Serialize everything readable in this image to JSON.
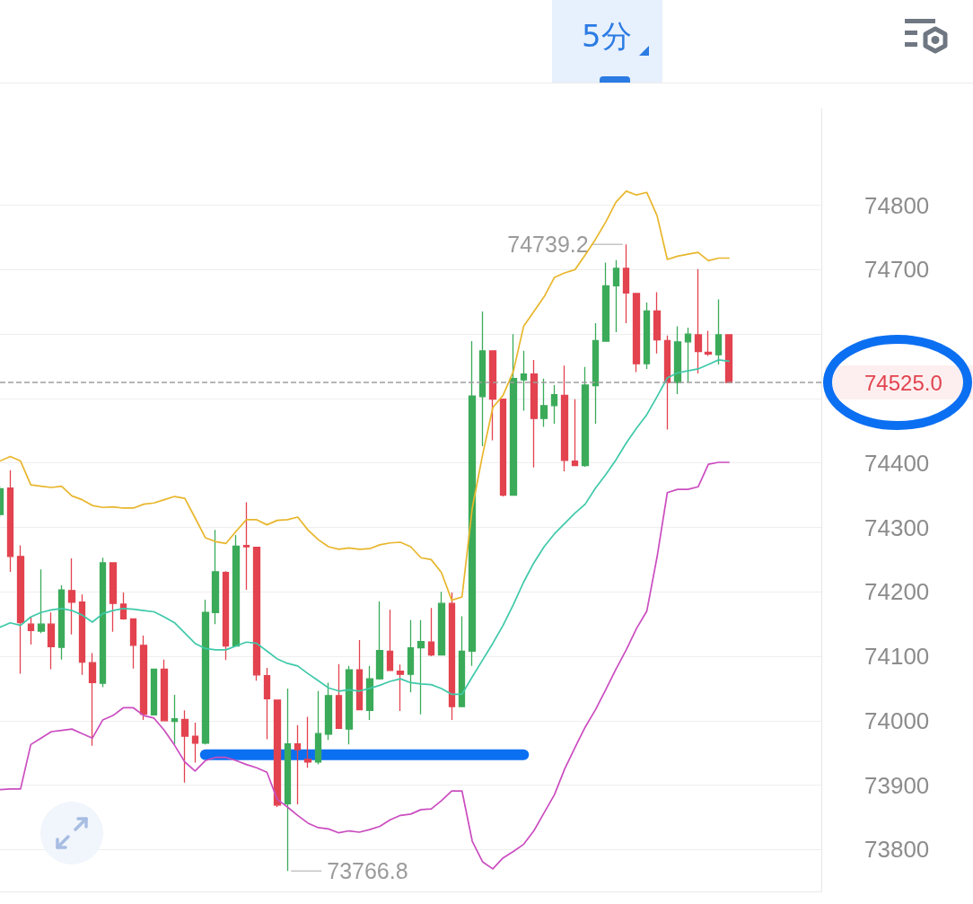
{
  "chart_data": {
    "type": "candlestick",
    "categories": [
      null,
      null,
      null,
      null,
      null,
      null,
      null,
      null,
      null,
      null,
      null,
      null,
      null,
      null,
      null,
      null,
      null,
      null,
      null,
      null,
      null,
      null,
      null,
      null,
      null,
      null,
      null,
      null,
      null,
      null,
      null,
      null,
      null,
      null,
      null,
      null,
      null,
      null,
      null,
      null,
      null,
      null,
      null,
      null,
      null,
      null,
      null,
      null,
      null,
      null,
      null,
      null,
      null,
      null,
      null,
      null,
      null,
      null,
      null,
      null,
      null,
      null,
      null,
      null,
      null,
      null,
      null,
      null,
      null,
      null,
      null,
      null
    ],
    "ohlc": [
      [
        74320,
        74365,
        74315,
        74360
      ],
      [
        74361,
        74389,
        74231,
        74255
      ],
      [
        74255,
        74272,
        74073,
        74152
      ],
      [
        74150,
        74161,
        74118,
        74140
      ],
      [
        74139,
        74235,
        74136,
        74150
      ],
      [
        74150,
        74168,
        74080,
        74115
      ],
      [
        74114,
        74210,
        74095,
        74203
      ],
      [
        74202,
        74252,
        74134,
        74184
      ],
      [
        74184,
        74196,
        74071,
        74091
      ],
      [
        74090,
        74105,
        73961,
        74059
      ],
      [
        74058,
        74253,
        74052,
        74245
      ],
      [
        74245,
        74245,
        74138,
        74182
      ],
      [
        74181,
        74199,
        74157,
        74158
      ],
      [
        74158,
        74158,
        74081,
        74117
      ],
      [
        74117,
        74132,
        74001,
        74010
      ],
      [
        74009,
        74080,
        74009,
        74080
      ],
      [
        74080,
        74095,
        74000,
        74000
      ],
      [
        73999,
        74040,
        73964,
        74003
      ],
      [
        74002,
        74016,
        73904,
        73976
      ],
      [
        73976,
        73997,
        73935,
        73965
      ],
      [
        73965,
        74188,
        73963,
        74168
      ],
      [
        74168,
        74296,
        74150,
        74231
      ],
      [
        74230,
        74232,
        74094,
        74116
      ],
      [
        74116,
        74288,
        74115,
        74271
      ],
      [
        74272,
        74339,
        74203,
        74270
      ],
      [
        74269,
        74269,
        74062,
        74071
      ],
      [
        74070,
        74082,
        73971,
        74034
      ],
      [
        74032,
        74032,
        73866,
        73869
      ],
      [
        73871,
        74050,
        73766.8,
        73964
      ],
      [
        73964,
        73993,
        73870,
        73955
      ],
      [
        73940,
        74006,
        73927,
        73936
      ],
      [
        73936,
        74046,
        73932,
        73980
      ],
      [
        73979,
        74059,
        73970,
        74039
      ],
      [
        74039,
        74088,
        73988,
        73988
      ],
      [
        73987,
        74085,
        73963,
        74079
      ],
      [
        74079,
        74125,
        74017,
        74017
      ],
      [
        74016,
        74085,
        74001,
        74065
      ],
      [
        74065,
        74185,
        74064,
        74109
      ],
      [
        74108,
        74172,
        74078,
        74078
      ],
      [
        74077,
        74087,
        74015,
        74072
      ],
      [
        74072,
        74156,
        74044,
        74113
      ],
      [
        74113,
        74156,
        74010,
        74123
      ],
      [
        74122,
        74175,
        74100,
        74102
      ],
      [
        74102,
        74200,
        74102,
        74182
      ],
      [
        74182,
        74199,
        74001,
        74022
      ],
      [
        74022,
        74162,
        74022,
        74108
      ],
      [
        74108,
        74589,
        74085,
        74504
      ],
      [
        74503,
        74635,
        74426,
        74574
      ],
      [
        74574,
        74574,
        74435,
        74499
      ],
      [
        74499,
        74499,
        74348,
        74350
      ],
      [
        74350,
        74600,
        74350,
        74531
      ],
      [
        74529,
        74574,
        74481,
        74538
      ],
      [
        74538,
        74560,
        74393,
        74469
      ],
      [
        74469,
        74531,
        74456,
        74489
      ],
      [
        74489,
        74521,
        74461,
        74506
      ],
      [
        74505,
        74551,
        74387,
        74404
      ],
      [
        74403,
        74499,
        74396,
        74396
      ],
      [
        74396,
        74549,
        74394,
        74521
      ],
      [
        74520,
        74617,
        74461,
        74590
      ],
      [
        74589,
        74711,
        74589,
        74675
      ],
      [
        74675,
        74715,
        74603,
        74702
      ],
      [
        74702,
        74739.2,
        74617,
        74664
      ],
      [
        74663,
        74663,
        74541,
        74554
      ],
      [
        74554,
        74649,
        74546,
        74636
      ],
      [
        74636,
        74665,
        74570,
        74591
      ],
      [
        74590,
        74598,
        74452,
        74525
      ],
      [
        74525,
        74612,
        74507,
        74588
      ],
      [
        74588,
        74610,
        74525,
        74600
      ],
      [
        74599,
        74701,
        74539,
        74573
      ],
      [
        74572,
        74605,
        74566,
        74569
      ],
      [
        74568,
        74654,
        74553,
        74599
      ],
      [
        74599,
        74599,
        74525,
        74525
      ]
    ],
    "series": [
      {
        "type": "line",
        "color": "#e8b62c",
        "values": [
          74403,
          74410,
          74403,
          74366,
          74364,
          74362,
          74364,
          74349,
          74343,
          74334,
          74331,
          74332,
          74330,
          74330,
          74336,
          74338,
          74343,
          74348,
          74345,
          74315,
          74284,
          74278,
          74275,
          74294,
          74312,
          74312,
          74304,
          74311,
          74312,
          74316,
          74296,
          74281,
          74270,
          74266,
          74268,
          74266,
          74267,
          74273,
          74276,
          74277,
          74270,
          74253,
          74250,
          74230,
          74187,
          74192,
          74330,
          74412,
          74486,
          74505,
          74542,
          74612,
          74635,
          74658,
          74688,
          74695,
          74700,
          74723,
          74747,
          74774,
          74805,
          74822,
          74816,
          74820,
          74784,
          74716,
          74721,
          74724,
          74727,
          74714,
          74718,
          74718
        ]
      },
      {
        "type": "line",
        "color": "#3ec9a9",
        "values": [
          74145,
          74152,
          74148,
          74161,
          74168,
          74172,
          74174,
          74171,
          74164,
          74153,
          74166,
          74171,
          74174,
          74173,
          74171,
          74169,
          74161,
          74152,
          74136,
          74120,
          74112,
          74110,
          74110,
          74116,
          74122,
          74120,
          74108,
          74096,
          74089,
          74085,
          74073,
          74062,
          74051,
          74046,
          74048,
          74046,
          74050,
          74055,
          74061,
          74065,
          74059,
          74057,
          74056,
          74050,
          74041,
          74041,
          74068,
          74094,
          74120,
          74148,
          74180,
          74215,
          74245,
          74270,
          74290,
          74306,
          74322,
          74336,
          74361,
          74382,
          74405,
          74431,
          74454,
          74475,
          74503,
          74532,
          74540,
          74543,
          74546,
          74553,
          74560,
          74558
        ]
      },
      {
        "type": "line",
        "color": "#cb4dc0",
        "values": [
          73893,
          73894,
          73894,
          73963,
          73973,
          73983,
          73985,
          73987,
          73980,
          73973,
          74001,
          74008,
          74020,
          74020,
          74008,
          74004,
          73985,
          73962,
          73936,
          73922,
          73938,
          73943,
          73943,
          73938,
          73932,
          73927,
          73920,
          73878,
          73866,
          73853,
          73841,
          73834,
          73832,
          73826,
          73829,
          73827,
          73831,
          73836,
          73846,
          73853,
          73855,
          73862,
          73863,
          73876,
          73891,
          73891,
          73813,
          73781,
          73770,
          73787,
          73797,
          73808,
          73829,
          73857,
          73885,
          73925,
          73958,
          73990,
          74017,
          74048,
          74080,
          74110,
          74143,
          74170,
          74254,
          74354,
          74359,
          74359,
          74363,
          74398,
          74401,
          74401
        ]
      },
      {
        "type": "line",
        "color": "#0b6ff2",
        "values": [
          null,
          null,
          null,
          null,
          null,
          null,
          null,
          null,
          null,
          null,
          null,
          null,
          null,
          null,
          null,
          null,
          null,
          null,
          null,
          null,
          73947,
          73947,
          73947,
          73947,
          73947,
          73947,
          73947,
          73947,
          73947,
          73947,
          73947,
          73947,
          73947,
          73947,
          73947,
          73947,
          73947,
          73947,
          73947,
          73947,
          73947,
          73947,
          73947,
          73947,
          73947,
          73947,
          73947,
          73947,
          73947,
          73947,
          73947,
          73947,
          null,
          null,
          null,
          null,
          null,
          null,
          null,
          null,
          null,
          null,
          null,
          null,
          null,
          null,
          null,
          null,
          null,
          null,
          null,
          null
        ]
      }
    ],
    "ylim": [
      73735,
      74950
    ],
    "yticks": [
      73800,
      73900,
      74000,
      74100,
      74200,
      74300,
      74400,
      {
        "value": 74500,
        "label": null
      },
      {
        "value": 74600,
        "label": null
      },
      74700,
      74800
    ],
    "tick_labels": "y",
    "grid": "y",
    "marker": "none",
    "ref_lines": [
      {
        "axis": "y",
        "value": 74525,
        "label": "74525.0",
        "color": "#9e9e9e",
        "line_style": "dashed"
      }
    ],
    "annotations": [
      "5分",
      "74739.2",
      "73766.8"
    ]
  }
}
